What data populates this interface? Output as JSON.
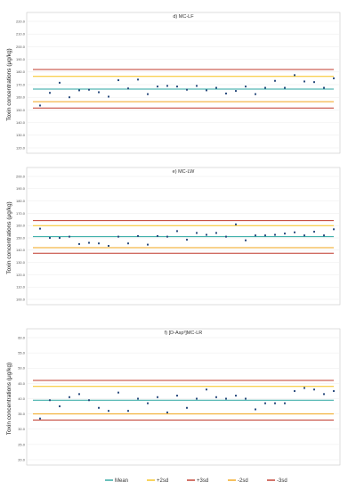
{
  "legend": {
    "items": [
      {
        "name": "Mean",
        "color": "#2aa6a0"
      },
      {
        "name": "+2sd",
        "color": "#f5c21b"
      },
      {
        "name": "+3sd",
        "color": "#c0392b"
      },
      {
        "name": "-2sd",
        "color": "#f2a51a"
      },
      {
        "name": "-3sd",
        "color": "#c0392b"
      }
    ],
    "placement": "bottom"
  },
  "chart_data": [
    {
      "type": "scatter",
      "title": "d) MC-LF",
      "ylabel": "Toxin concentrations (μg/kg)",
      "ylim": [
        120.0,
        220.0
      ],
      "yticks": [
        120.0,
        130.0,
        140.0,
        150.0,
        160.0,
        170.0,
        180.0,
        190.0,
        200.0,
        210.0,
        220.0
      ],
      "grid": true,
      "x": [
        1,
        2,
        3,
        4,
        5,
        6,
        7,
        8,
        9,
        10,
        11,
        12,
        13,
        14,
        15,
        16,
        17,
        18,
        19,
        20,
        21,
        22,
        23,
        24,
        25,
        26,
        27,
        28,
        29,
        30,
        31
      ],
      "values": [
        153.5,
        163.5,
        171.5,
        160.0,
        165.5,
        166.0,
        164.0,
        160.5,
        173.5,
        167.0,
        174.0,
        162.5,
        168.5,
        169.0,
        168.5,
        166.0,
        169.0,
        165.5,
        167.5,
        163.0,
        165.0,
        168.5,
        162.5,
        167.5,
        173.0,
        167.5,
        177.5,
        172.5,
        172.0,
        167.5,
        175.0
      ],
      "lines": {
        "mean": 166.5,
        "plus2sd": 176.5,
        "plus3sd": 182.0,
        "minus2sd": 156.5,
        "minus3sd": 151.5
      }
    },
    {
      "type": "scatter",
      "title": "e) MC-LW",
      "ylabel": "Toxin concentrations (μg/kg)",
      "ylim": [
        100.0,
        200.0
      ],
      "yticks": [
        100.0,
        110.0,
        120.0,
        130.0,
        140.0,
        150.0,
        160.0,
        170.0,
        180.0,
        190.0,
        200.0
      ],
      "grid": true,
      "x": [
        1,
        2,
        3,
        4,
        5,
        6,
        7,
        8,
        9,
        10,
        11,
        12,
        13,
        14,
        15,
        16,
        17,
        18,
        19,
        20,
        21,
        22,
        23,
        24,
        25,
        26,
        27,
        28,
        29,
        30,
        31
      ],
      "values": [
        157.5,
        150.0,
        150.0,
        151.0,
        145.0,
        146.0,
        145.5,
        143.5,
        151.0,
        145.5,
        151.5,
        144.5,
        151.5,
        151.0,
        155.5,
        148.5,
        154.0,
        152.5,
        154.0,
        151.0,
        161.0,
        148.0,
        152.0,
        152.0,
        152.5,
        153.5,
        154.5,
        152.0,
        155.0,
        152.0,
        157.0
      ],
      "lines": {
        "mean": 151.0,
        "plus2sd": 160.0,
        "plus3sd": 164.0,
        "minus2sd": 142.0,
        "minus3sd": 137.5
      }
    },
    {
      "type": "scatter",
      "title": "f) [D-Asp³]MC-LR",
      "ylabel": "Toxin concentrations (μg/kg)",
      "ylim": [
        20.0,
        60.0
      ],
      "yticks": [
        20.0,
        25.0,
        30.0,
        35.0,
        40.0,
        45.0,
        50.0,
        55.0,
        60.0
      ],
      "grid": true,
      "x": [
        1,
        2,
        3,
        4,
        5,
        6,
        7,
        8,
        9,
        10,
        11,
        12,
        13,
        14,
        15,
        16,
        17,
        18,
        19,
        20,
        21,
        22,
        23,
        24,
        25,
        26,
        27,
        28,
        29,
        30,
        31
      ],
      "values": [
        33.5,
        39.5,
        37.5,
        40.5,
        41.5,
        39.5,
        37.0,
        36.0,
        42.0,
        36.0,
        40.0,
        38.5,
        40.5,
        35.5,
        41.0,
        37.0,
        40.0,
        43.0,
        40.5,
        40.0,
        41.0,
        40.0,
        36.5,
        38.5,
        38.5,
        38.5,
        42.5,
        43.5,
        43.0,
        41.5,
        42.5
      ],
      "lines": {
        "mean": 39.5,
        "plus2sd": 44.0,
        "plus3sd": 46.0,
        "minus2sd": 35.0,
        "minus3sd": 33.0
      }
    }
  ]
}
